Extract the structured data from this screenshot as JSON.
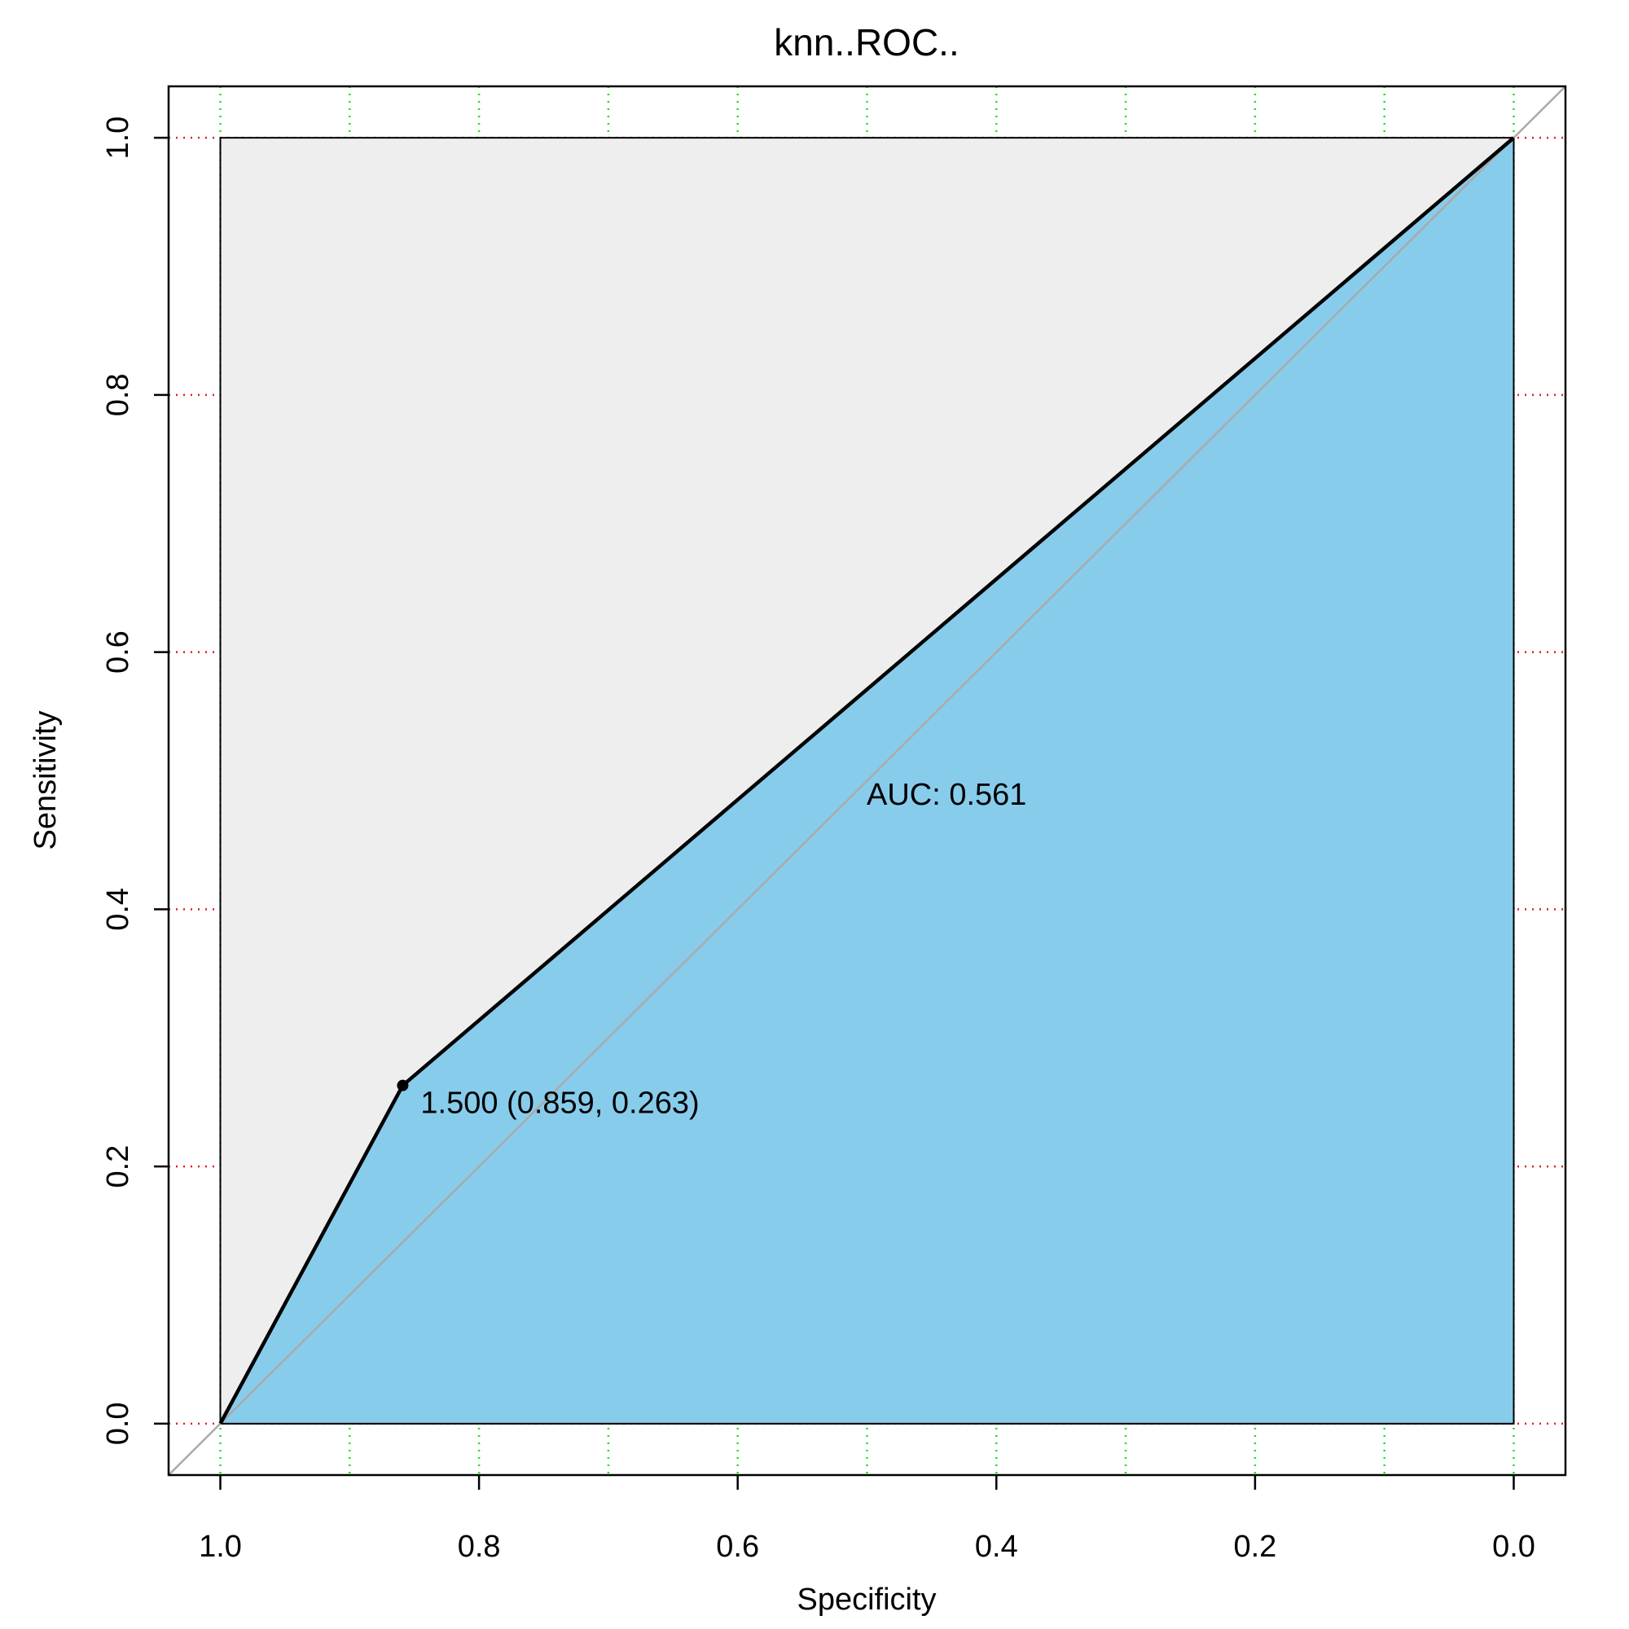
{
  "chart_data": {
    "type": "roc",
    "title": "knn..ROC..",
    "x_label": "Specificity",
    "y_label": "Sensitivity",
    "xlim": [
      1.04,
      -0.04
    ],
    "ylim": [
      -0.04,
      1.04
    ],
    "xticks": [
      {
        "value": 1,
        "label": "1.0"
      },
      0.8,
      0.6,
      0.4,
      0.2,
      {
        "value": 0,
        "label": "0.0"
      }
    ],
    "yticks": [
      {
        "value": 0,
        "label": "0.0"
      },
      0.2,
      0.4,
      0.6,
      0.8,
      {
        "value": 1,
        "label": "1.0"
      }
    ],
    "xgrid": [
      0,
      0.1,
      0.2,
      0.3,
      0.4,
      0.5,
      0.6,
      0.7,
      0.8,
      0.9,
      1
    ],
    "xgrid_color": "#22dd22",
    "ygrid_color": "#dd2222",
    "series": [
      {
        "x": [
          1,
          0.859,
          0
        ],
        "values": [
          0,
          0.263,
          1
        ],
        "color": "#000000",
        "fill": "#88ccec"
      }
    ],
    "threshold": {
      "x": 0.859,
      "y": 0.263,
      "label": "1.500 (0.859, 0.263)"
    },
    "auc_label": "AUC: 0.561"
  }
}
